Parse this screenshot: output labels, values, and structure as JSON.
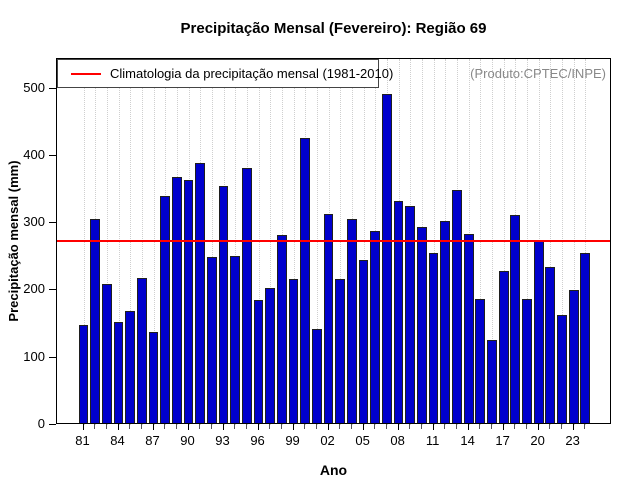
{
  "title": "Precipitação Mensal (Fevereiro): Região 69",
  "legend": {
    "label": "Climatologia da precipitação mensal (1981-2010)"
  },
  "annotation": "(Produto:CPTEC/INPE)",
  "xlabel": "Ano",
  "ylabel": "Precipitação mensal (mm)",
  "colors": {
    "bar_fill": "#0000cd",
    "bar_border": "#1f1f1f",
    "climatology_line": "#ff0000",
    "grid_line": "#cfcfcf",
    "annotation_text": "#898989",
    "frame": "#000000"
  },
  "chart_data": {
    "type": "bar",
    "title": "Precipitação Mensal (Fevereiro): Região 69",
    "xlabel": "Ano",
    "ylabel": "Precipitação mensal (mm)",
    "ylim": [
      0,
      544
    ],
    "yticks": [
      0,
      100,
      200,
      300,
      400,
      500
    ],
    "x_tick_labels_shown": [
      "81",
      "84",
      "87",
      "90",
      "93",
      "96",
      "99",
      "02",
      "05",
      "08",
      "11",
      "14",
      "17",
      "20",
      "23"
    ],
    "years": [
      1981,
      1982,
      1983,
      1984,
      1985,
      1986,
      1987,
      1988,
      1989,
      1990,
      1991,
      1992,
      1993,
      1994,
      1995,
      1996,
      1997,
      1998,
      1999,
      2000,
      2001,
      2002,
      2003,
      2004,
      2005,
      2006,
      2007,
      2008,
      2009,
      2010,
      2011,
      2012,
      2013,
      2014,
      2015,
      2016,
      2017,
      2018,
      2019,
      2020,
      2021,
      2022,
      2023,
      2024
    ],
    "values": [
      145,
      303,
      207,
      150,
      167,
      215,
      135,
      338,
      366,
      361,
      387,
      247,
      352,
      248,
      379,
      183,
      200,
      279,
      214,
      423,
      140,
      310,
      214,
      303,
      243,
      286,
      489,
      330,
      323,
      291,
      252,
      300,
      346,
      281,
      185,
      124,
      226,
      309,
      184,
      272,
      232,
      161,
      198,
      253
    ],
    "climatology_value": 274,
    "legend": "Climatologia da precipitação mensal (1981-2010)",
    "legend_position": "topleft",
    "grid": "vertical-dotted",
    "annotation": "(Produto:CPTEC/INPE)"
  }
}
